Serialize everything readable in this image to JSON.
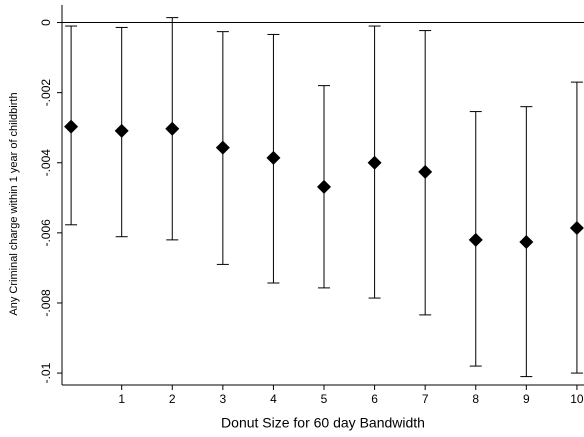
{
  "chart_data": {
    "type": "errorbar",
    "x_label": "Donut Size for 60 day Bandwidth",
    "y_label": "Any Criminal charge within 1 year of childbirth",
    "x": [
      0,
      1,
      2,
      3,
      4,
      5,
      6,
      7,
      8,
      9,
      10
    ],
    "series": [
      {
        "color": "#000000",
        "values": [
          -0.00297,
          -0.00309,
          -0.00303,
          -0.00357,
          -0.00386,
          -0.00469,
          -0.004,
          -0.00426,
          -0.0062,
          -0.00626,
          -0.00586
        ],
        "lower": [
          -0.00577,
          -0.00611,
          -0.0062,
          -0.0069,
          -0.00743,
          -0.00757,
          -0.00786,
          -0.00834,
          -0.0098,
          -0.0101,
          -0.01
        ],
        "upper": [
          -0.0001,
          -0.00014,
          0.00014,
          -0.00026,
          -0.00034,
          -0.0018,
          -0.0001,
          -0.00023,
          -0.00254,
          -0.0024,
          -0.0017
        ]
      }
    ],
    "xlim": [
      -0.18,
      10.14
    ],
    "ylim": [
      -0.01034,
      0.0005
    ],
    "xticks": [
      1,
      2,
      3,
      4,
      5,
      6,
      7,
      8,
      9,
      10
    ],
    "yticks": [
      0,
      {
        "value": -0.002,
        "label": "-.002"
      },
      {
        "value": -0.004,
        "label": "-.004"
      },
      {
        "value": -0.006,
        "label": "-.006"
      },
      {
        "value": -0.008,
        "label": "-.008"
      },
      {
        "value": -0.01,
        "label": "-.01"
      }
    ],
    "reference_line": 0
  }
}
